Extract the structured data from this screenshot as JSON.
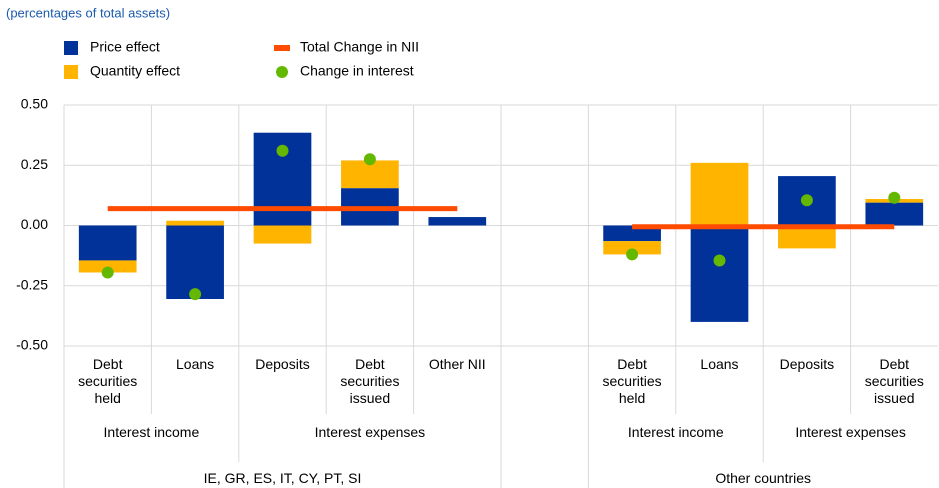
{
  "chart_data": {
    "type": "stacked_bar_line",
    "subtitle": "(percentages of total assets)",
    "categories": [
      "Debt securities held",
      "Loans",
      "Deposits",
      "Debt securities issued",
      "Other NII",
      null,
      "Debt securities held",
      "Loans",
      "Deposits",
      "Debt securities issued"
    ],
    "subgroups": [
      "Interest income",
      "Interest expenses",
      "Interest income",
      "Interest expenses"
    ],
    "groups": [
      "IE, GR, ES, IT, CY, PT, SI",
      "Other countries"
    ],
    "series": [
      {
        "name": "Price effect",
        "type": "bar",
        "color": "#003299",
        "values": [
          -0.145,
          -0.305,
          0.385,
          0.155,
          0.035,
          null,
          -0.065,
          -0.4,
          0.205,
          0.095
        ]
      },
      {
        "name": "Quantity effect",
        "type": "bar",
        "color": "#ffb400",
        "values": [
          -0.05,
          0.02,
          -0.075,
          0.115,
          null,
          null,
          -0.055,
          0.26,
          -0.095,
          0.015
        ]
      },
      {
        "name": "Total Change in NII",
        "type": "line",
        "color": "#ff4b00",
        "values": [
          0.07,
          0.07,
          0.07,
          0.07,
          0.07,
          null,
          -0.005,
          -0.005,
          -0.005,
          -0.005
        ]
      },
      {
        "name": "Change in interest",
        "type": "scatter",
        "color": "#65b800",
        "values": [
          -0.195,
          -0.285,
          0.31,
          0.275,
          null,
          null,
          -0.12,
          -0.145,
          0.105,
          0.115
        ]
      }
    ],
    "ylim": [
      -0.5,
      0.5
    ],
    "yticks": [
      {
        "value": 0.5,
        "label": "0.50"
      },
      {
        "value": 0.25,
        "label": "0.25"
      },
      {
        "value": 0,
        "label": "0.00"
      },
      {
        "value": -0.25,
        "label": "-0.25"
      },
      {
        "value": -0.5,
        "label": "-0.50"
      }
    ],
    "grid": true
  }
}
